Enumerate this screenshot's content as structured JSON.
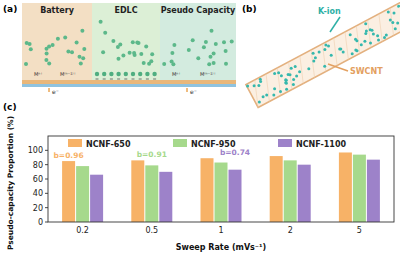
{
  "panels": {
    "a": {
      "label": "(a)",
      "zones": [
        "Battery",
        "EDLC",
        "Pseudo Capacity"
      ],
      "ion_labels": [
        "Mⁿ⁺",
        "M⁽ⁿ⁻¹⁾⁺"
      ],
      "electron_label": "e⁻"
    },
    "b": {
      "label": "(b)",
      "ion_label": "K-ion",
      "tube_label": "SWCNT"
    }
  },
  "chart_data": {
    "type": "bar",
    "title": "(c)",
    "x_label": "Sweep Rate (mVs⁻¹)",
    "y_label": "Pseudo-capacity Proportion (%)",
    "categories": [
      "0.2",
      "0.5",
      "1",
      "2",
      "5"
    ],
    "series": [
      {
        "name": "NCNF-650",
        "color": "#f7b267",
        "values": [
          85,
          86,
          89,
          92,
          97
        ]
      },
      {
        "name": "NCNF-950",
        "color": "#a6d98c",
        "values": [
          78,
          79,
          83,
          86,
          94
        ]
      },
      {
        "name": "NCNF-1100",
        "color": "#9d82c9",
        "values": [
          66,
          70,
          73,
          80,
          87
        ]
      }
    ],
    "ylim": [
      0,
      120
    ],
    "yticks": [
      0,
      20,
      40,
      60,
      80,
      100
    ],
    "legend": "top",
    "annotations": [
      "b=0.96",
      "b=0.91",
      "b=0.74"
    ]
  }
}
